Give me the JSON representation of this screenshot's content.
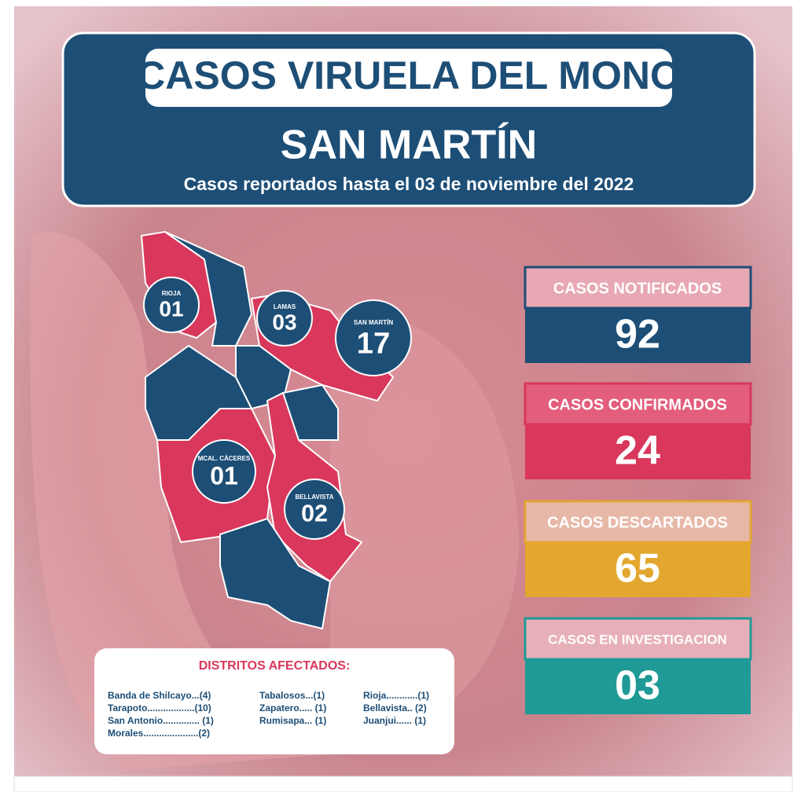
{
  "header": {
    "title": "CASOS VIRUELA DEL MONO",
    "region": "SAN MARTÍN",
    "subtitle": "Casos reportados hasta el 03 de noviembre del 2022"
  },
  "map_labels": [
    {
      "name": "RIOJA",
      "count": "01"
    },
    {
      "name": "LAMAS",
      "count": "03"
    },
    {
      "name": "SAN MARTÍN",
      "count": "17"
    },
    {
      "name": "MCAL. CÁCERES",
      "count": "01"
    },
    {
      "name": "BELLAVISTA",
      "count": "02"
    }
  ],
  "stats": [
    {
      "label": "CASOS NOTIFICADOS",
      "value": "92"
    },
    {
      "label": "CASOS CONFIRMADOS",
      "value": "24"
    },
    {
      "label": "CASOS DESCARTADOS",
      "value": "65"
    },
    {
      "label": "CASOS EN INVESTIGACION",
      "value": "03"
    }
  ],
  "districts": {
    "title": "DISTRITOS AFECTADOS:",
    "columns": [
      [
        "Banda de Shilcayo...(4)",
        "Tarapoto..................(10)",
        "San Antonio.............. (1)",
        "Morales.....................(2)"
      ],
      [
        "Tabalosos...(1)",
        "Zapatero..... (1)",
        "Rumisapa... (1)"
      ],
      [
        "Rioja............(1)",
        "Bellavista.. (2)",
        "Juanjui...... (1)"
      ]
    ]
  }
}
